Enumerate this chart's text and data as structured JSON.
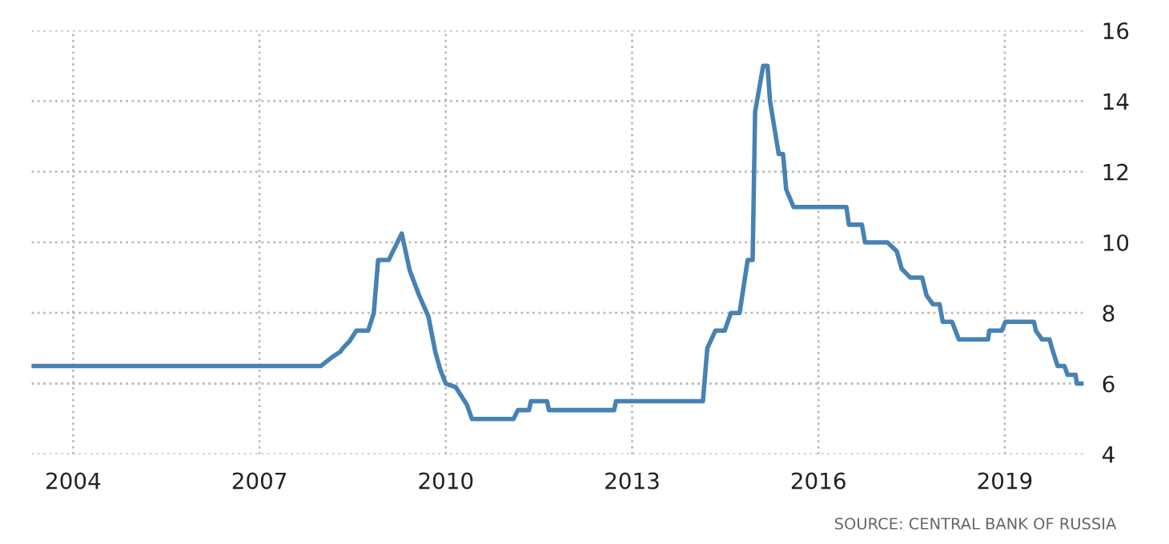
{
  "chart_data": {
    "type": "line",
    "x": [
      2003.33,
      2007.99,
      2008.17,
      2008.3,
      2008.34,
      2008.45,
      2008.56,
      2008.75,
      2008.84,
      2008.91,
      2009.08,
      2009.29,
      2009.42,
      2009.57,
      2009.72,
      2009.83,
      2009.91,
      2010.0,
      2010.16,
      2010.34,
      2010.42,
      2011.09,
      2011.16,
      2011.34,
      2011.37,
      2011.63,
      2011.66,
      2012.71,
      2012.74,
      2014.14,
      2014.21,
      2014.34,
      2014.49,
      2014.59,
      2014.73,
      2014.86,
      2014.94,
      2014.98,
      2015.11,
      2015.18,
      2015.22,
      2015.36,
      2015.43,
      2015.48,
      2015.6,
      2016.45,
      2016.49,
      2016.7,
      2016.75,
      2017.11,
      2017.26,
      2017.34,
      2017.48,
      2017.67,
      2017.74,
      2017.84,
      2017.95,
      2018.0,
      2018.15,
      2018.26,
      2018.73,
      2018.75,
      2018.95,
      2019.01,
      2019.47,
      2019.5,
      2019.6,
      2019.72,
      2019.76,
      2019.85,
      2019.96,
      2020.01,
      2020.14,
      2020.16,
      2020.27
    ],
    "series": [
      {
        "color": "#4682b4",
        "values": [
          6.5,
          6.5,
          6.75,
          6.9,
          7.0,
          7.2,
          7.5,
          7.5,
          8.0,
          9.5,
          9.5,
          10.25,
          9.2,
          8.5,
          7.9,
          6.9,
          6.4,
          6.0,
          5.9,
          5.4,
          5.0,
          5.0,
          5.25,
          5.25,
          5.5,
          5.5,
          5.25,
          5.25,
          5.5,
          5.5,
          7.0,
          7.5,
          7.5,
          8.0,
          8.0,
          9.5,
          9.5,
          13.7,
          15.0,
          15.0,
          14.0,
          12.5,
          12.5,
          11.5,
          11.0,
          11.0,
          10.5,
          10.5,
          10.0,
          10.0,
          9.75,
          9.25,
          9.0,
          9.0,
          8.5,
          8.25,
          8.25,
          7.75,
          7.75,
          7.25,
          7.25,
          7.5,
          7.5,
          7.75,
          7.75,
          7.5,
          7.25,
          7.25,
          7.0,
          6.5,
          6.5,
          6.25,
          6.25,
          6.0,
          6.0
        ]
      }
    ],
    "xlim": [
      2003.33,
      2020.27
    ],
    "xticks": [
      2004,
      2007,
      2010,
      2013,
      2016,
      2019
    ],
    "ylim": [
      4,
      16
    ],
    "yticks": [
      4,
      6,
      8,
      10,
      12,
      14,
      16
    ],
    "grid": true,
    "line_style": "solid",
    "marker": "none",
    "annotations": [
      "SOURCE: CENTRAL BANK OF RUSSIA"
    ]
  }
}
